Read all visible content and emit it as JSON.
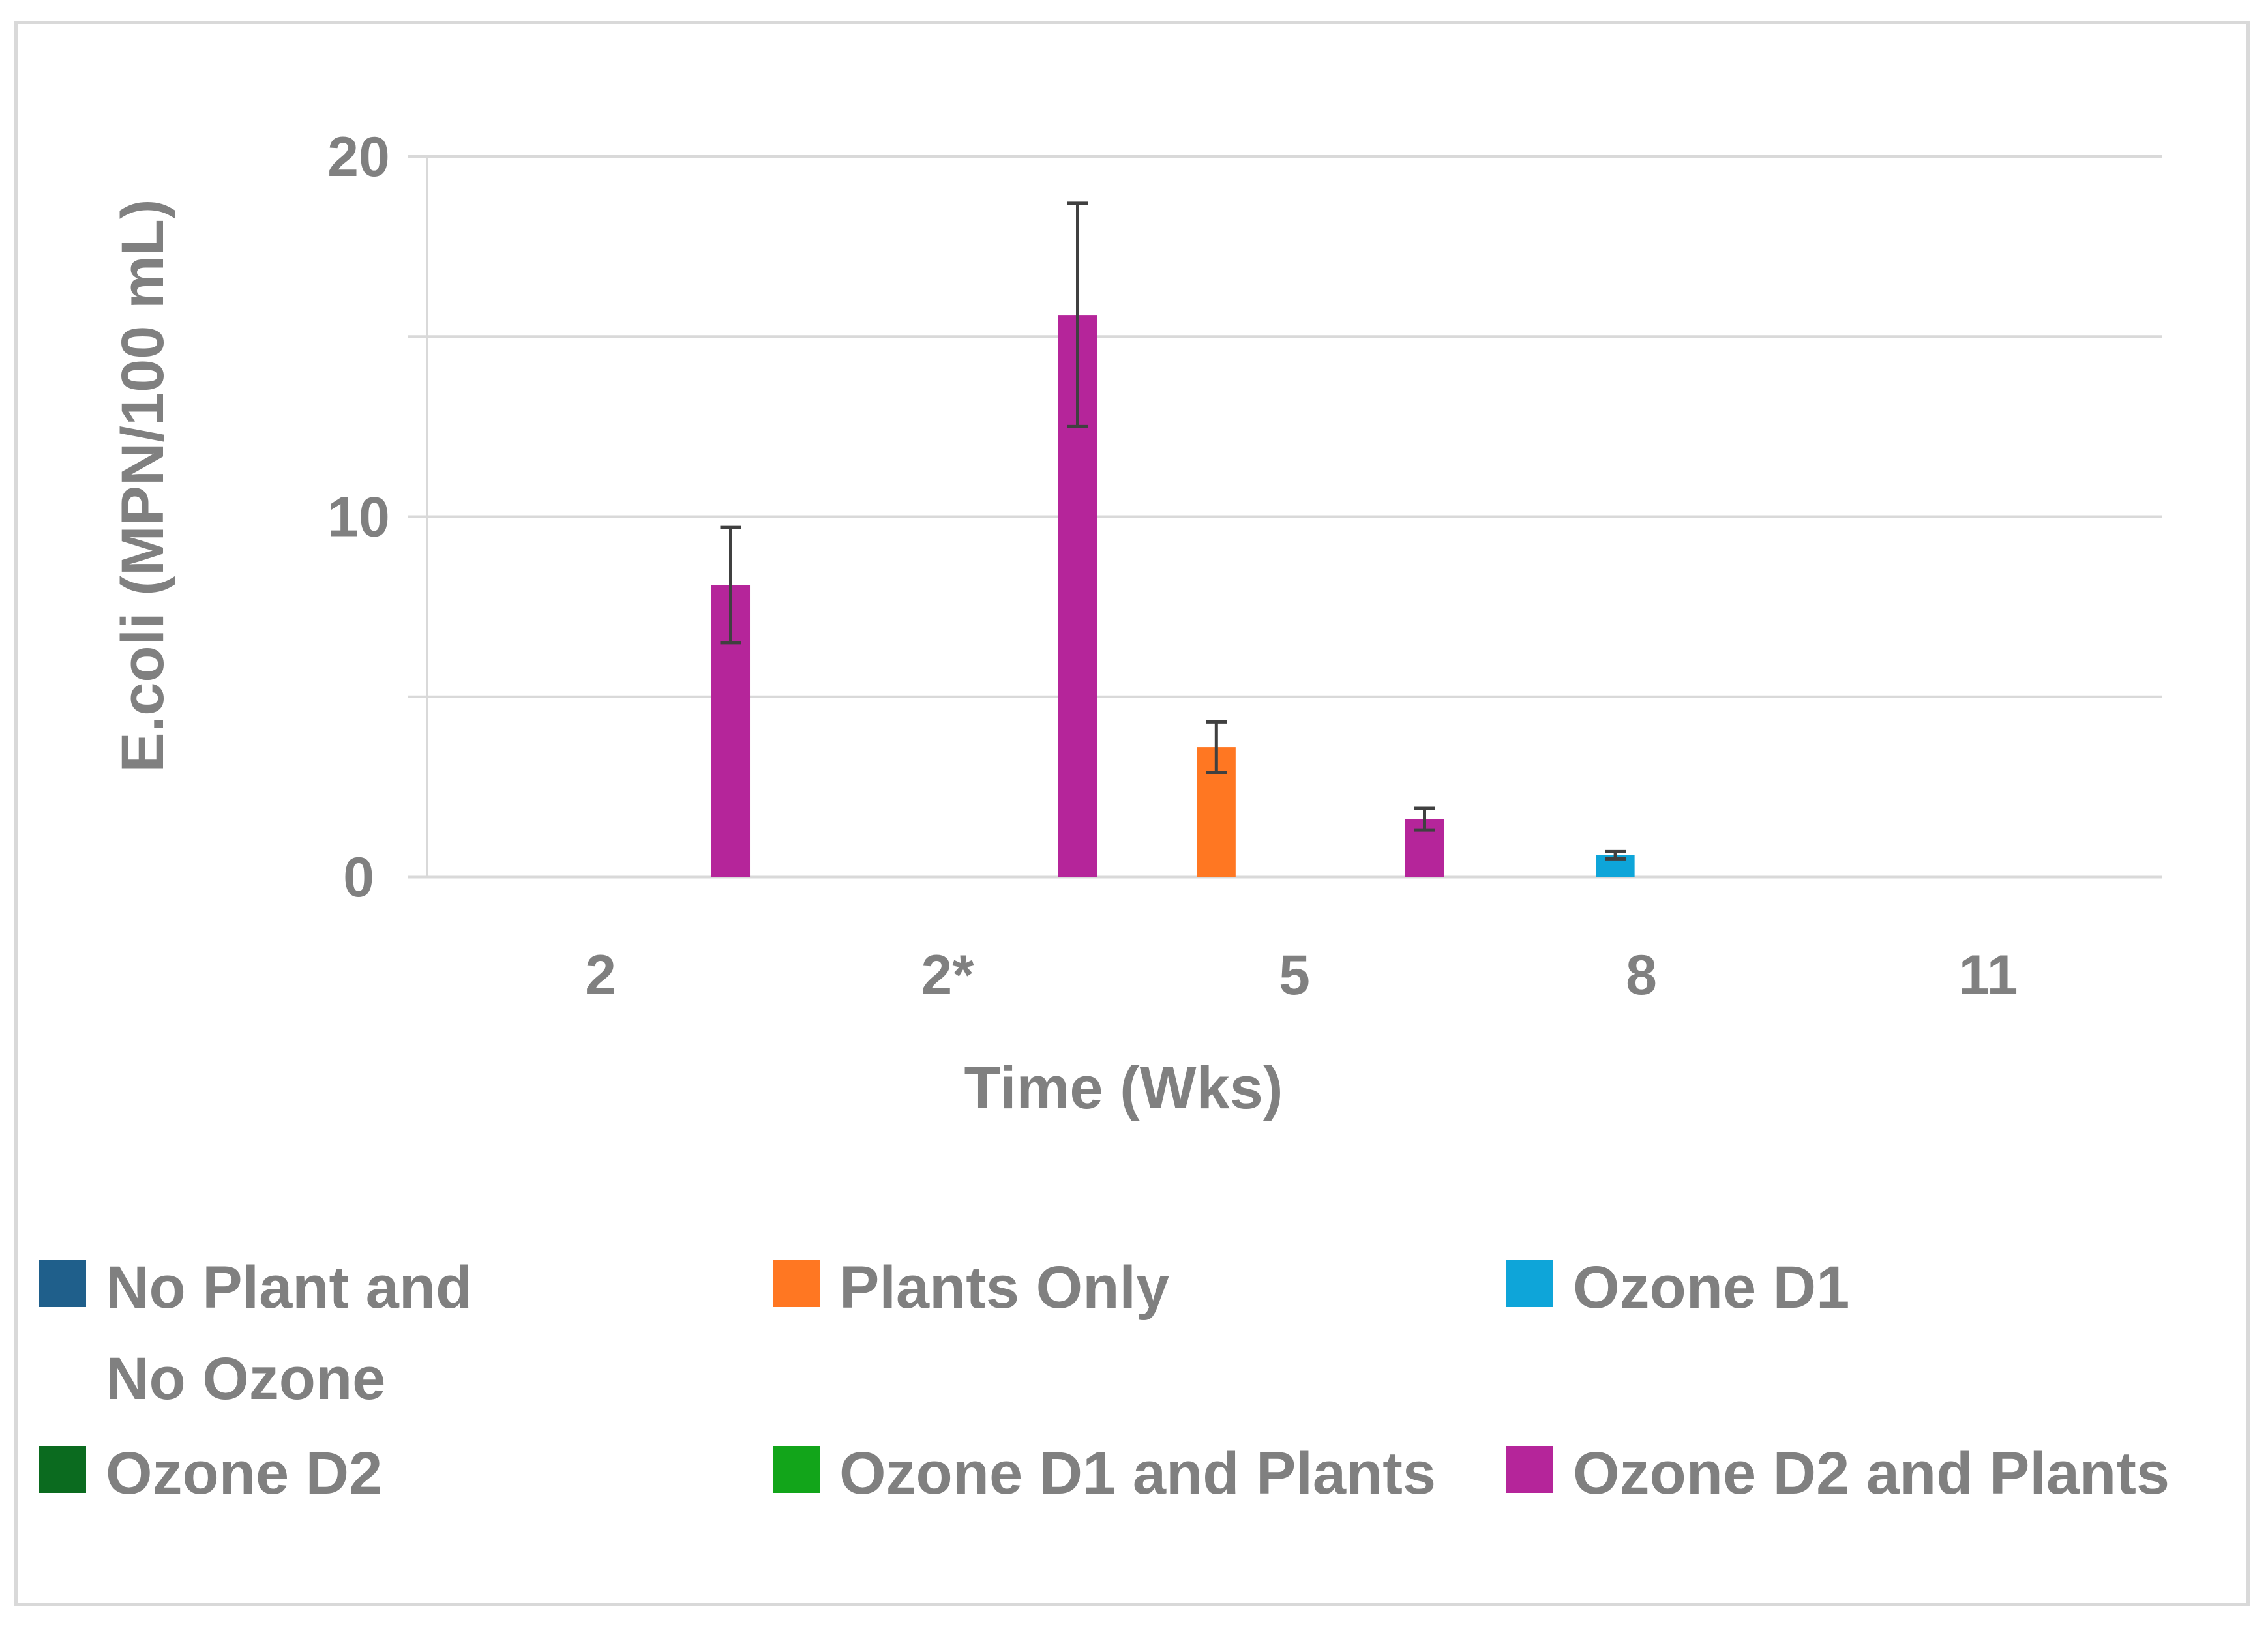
{
  "chart_data": {
    "type": "bar",
    "title": "",
    "xlabel": "Time (Wks)",
    "ylabel": "E.coli (MPN/100 mL)",
    "ylim": [
      0,
      20
    ],
    "yticks": [
      0,
      10,
      20
    ],
    "grid": true,
    "categories": [
      "2",
      "2*",
      "5",
      "8",
      "11"
    ],
    "series": [
      {
        "name": "No Plant and No Ozone",
        "color": "#1f5f8b",
        "values": [
          0,
          0,
          0,
          0,
          0
        ],
        "errors": [
          0,
          0,
          0,
          0,
          0
        ]
      },
      {
        "name": "Plants Only",
        "color": "#ff7722",
        "values": [
          0,
          0,
          3.6,
          0,
          0
        ],
        "errors": [
          0,
          0,
          0.7,
          0,
          0
        ]
      },
      {
        "name": "Ozone D1",
        "color": "#0ea5d9",
        "values": [
          0,
          0,
          0,
          0.6,
          0
        ],
        "errors": [
          0,
          0,
          0,
          0.1,
          0
        ]
      },
      {
        "name": "Ozone D2",
        "color": "#0b6b1f",
        "values": [
          0,
          0,
          0,
          0,
          0
        ],
        "errors": [
          0,
          0,
          0,
          0,
          0
        ]
      },
      {
        "name": "Ozone D1 and Plants",
        "color": "#12a51a",
        "values": [
          0,
          0,
          0,
          0,
          0
        ],
        "errors": [
          0,
          0,
          0,
          0,
          0
        ]
      },
      {
        "name": "Ozone D2 and Plants",
        "color": "#b5259a",
        "values": [
          8.1,
          15.6,
          1.6,
          0,
          0
        ],
        "errors": [
          1.6,
          3.1,
          0.3,
          0,
          0
        ]
      }
    ],
    "legend_position": "bottom"
  },
  "legend": {
    "items": [
      {
        "label": "No Plant and No Ozone",
        "color": "#1f5f8b"
      },
      {
        "label": "Plants Only",
        "color": "#ff7722"
      },
      {
        "label": "Ozone D1",
        "color": "#0ea5d9"
      },
      {
        "label": "Ozone D2",
        "color": "#0b6b1f"
      },
      {
        "label": "Ozone D1 and Plants",
        "color": "#12a51a"
      },
      {
        "label": "Ozone D2 and Plants",
        "color": "#b5259a"
      }
    ]
  },
  "colors": {
    "gridline": "#d9d9d9",
    "axis_text": "#808080",
    "error_bar": "#404040",
    "frame": "#d9d9d9"
  }
}
